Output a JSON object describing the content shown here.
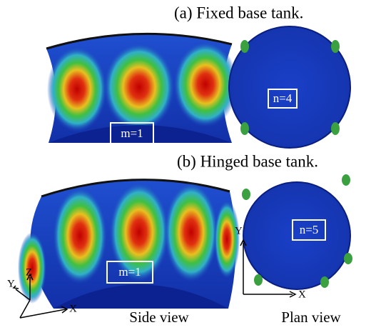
{
  "panels": [
    {
      "title": "(a) Fixed base tank.",
      "side_label": "m=1",
      "plan_label": "n=4"
    },
    {
      "title": "(b) Hinged base tank.",
      "side_label": "m=1",
      "plan_label": "n=5"
    }
  ],
  "axes": {
    "side": {
      "x": "X",
      "y": "Y",
      "z": "Z"
    },
    "plan": {
      "x": "X",
      "y": "Y"
    }
  },
  "captions": {
    "side": "Side view",
    "plan": "Plan view"
  }
}
